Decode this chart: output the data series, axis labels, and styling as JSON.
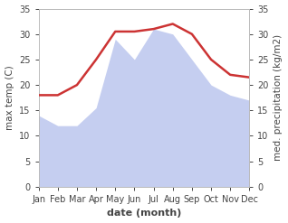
{
  "months": [
    "Jan",
    "Feb",
    "Mar",
    "Apr",
    "May",
    "Jun",
    "Jul",
    "Aug",
    "Sep",
    "Oct",
    "Nov",
    "Dec"
  ],
  "temp": [
    18.0,
    18.0,
    20.0,
    25.0,
    30.5,
    30.5,
    31.0,
    32.0,
    30.0,
    25.0,
    22.0,
    21.5
  ],
  "precip": [
    14.0,
    12.0,
    12.0,
    15.5,
    29.0,
    25.0,
    31.0,
    30.0,
    25.0,
    20.0,
    18.0,
    17.0
  ],
  "temp_color": "#cc3333",
  "precip_color_fill": "#c5cef0",
  "precip_alpha": 1.0,
  "background_color": "#ffffff",
  "ylim": [
    0,
    35
  ],
  "yticks": [
    0,
    5,
    10,
    15,
    20,
    25,
    30,
    35
  ],
  "ylabel_left": "max temp (C)",
  "ylabel_right": "med. precipitation (kg/m2)",
  "xlabel": "date (month)",
  "temp_linewidth": 1.8,
  "xlabel_fontsize": 8,
  "ylabel_fontsize": 7.5,
  "tick_fontsize": 7,
  "spine_color": "#bbbbbb",
  "tick_color": "#444444"
}
